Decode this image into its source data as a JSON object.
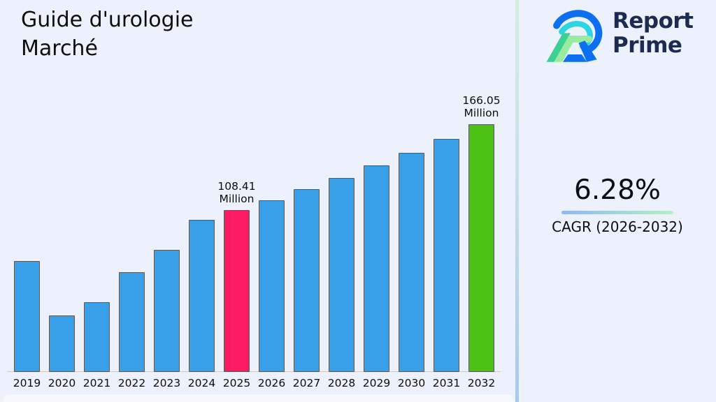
{
  "title": {
    "line1": "Guide d'urologie",
    "line2": "Marché"
  },
  "logo": {
    "line1": "Report",
    "line2": "Prime"
  },
  "stats": {
    "cagr_value": "6.28%",
    "cagr_label": "CAGR (2026-2032)"
  },
  "colors": {
    "background": "#ecf1fb",
    "bar_blue": "#38a0e8",
    "bar_pink": "#fa1b63",
    "bar_green": "#4ac113",
    "bar_border": "#58595c",
    "axis_line": "#c9cacd",
    "text_dark": "#0d0d0d",
    "logo_navy": "#1d2b53",
    "logo_blue": "#0d6ff2",
    "logo_cyan": "#2bd5e2",
    "logo_teal": "#3ecf92",
    "logo_lightgreen": "#97ec9f",
    "divider_top": "#cdf3dc",
    "divider_bottom": "#a6c9f2",
    "underline_blue": "#92b7f2",
    "underline_green": "#b6eec6"
  },
  "chart_data": {
    "type": "bar",
    "title": "Guide d'urologie Marché",
    "unit": "Million",
    "categories": [
      "2019",
      "2020",
      "2021",
      "2022",
      "2023",
      "2024",
      "2025",
      "2026",
      "2027",
      "2028",
      "2029",
      "2030",
      "2031",
      "2032"
    ],
    "values": [
      74.4,
      37.9,
      46.7,
      67.1,
      81.7,
      102.1,
      108.41,
      115.22,
      122.46,
      130.15,
      138.32,
      147.01,
      156.24,
      166.05
    ],
    "ylim": [
      0,
      170
    ],
    "grid": false,
    "legend": false,
    "bar_color": "#38a0e8",
    "highlight_colors": {
      "2025": "#fa1b63",
      "2032": "#4ac113"
    },
    "annotations": [
      {
        "category": "2025",
        "line1": "108.41",
        "line2": "Million"
      },
      {
        "category": "2032",
        "line1": "166.05",
        "line2": "Million"
      }
    ]
  }
}
